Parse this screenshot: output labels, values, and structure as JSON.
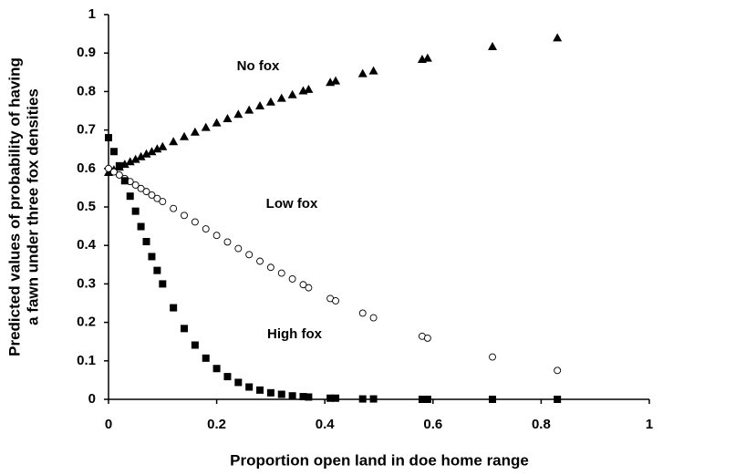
{
  "chart_data": {
    "type": "scatter",
    "x_label": "Proportion open land in doe home range",
    "y_label": [
      "Predicted values of probability of having",
      "a fawn under three fox densities"
    ],
    "annotations": [
      "No fox",
      "Low fox",
      "High fox"
    ],
    "x": [
      0,
      0.01,
      0.02,
      0.03,
      0.04,
      0.05,
      0.06,
      0.07,
      0.08,
      0.09,
      0.1,
      0.12,
      0.14,
      0.16,
      0.18,
      0.2,
      0.22,
      0.24,
      0.26,
      0.28,
      0.3,
      0.32,
      0.34,
      0.36,
      0.37,
      0.41,
      0.42,
      0.47,
      0.49,
      0.58,
      0.59,
      0.71,
      0.83
    ],
    "series": [
      {
        "name": "No fox",
        "marker": "triangle",
        "color": "#000000",
        "values": [
          0.59,
          0.597,
          0.604,
          0.611,
          0.618,
          0.624,
          0.631,
          0.638,
          0.644,
          0.651,
          0.657,
          0.67,
          0.683,
          0.695,
          0.707,
          0.719,
          0.73,
          0.741,
          0.752,
          0.763,
          0.773,
          0.783,
          0.792,
          0.802,
          0.806,
          0.824,
          0.828,
          0.847,
          0.854,
          0.884,
          0.887,
          0.917,
          0.94
        ]
      },
      {
        "name": "Low fox",
        "marker": "circle",
        "color": "#000000",
        "values": [
          0.6,
          0.591,
          0.583,
          0.574,
          0.566,
          0.557,
          0.548,
          0.54,
          0.531,
          0.522,
          0.514,
          0.496,
          0.478,
          0.461,
          0.443,
          0.426,
          0.409,
          0.392,
          0.376,
          0.359,
          0.343,
          0.328,
          0.313,
          0.298,
          0.29,
          0.262,
          0.256,
          0.224,
          0.212,
          0.164,
          0.159,
          0.11,
          0.075
        ]
      },
      {
        "name": "High fox",
        "marker": "square",
        "color": "#000000",
        "values": [
          0.68,
          0.644,
          0.607,
          0.568,
          0.528,
          0.489,
          0.449,
          0.41,
          0.371,
          0.335,
          0.3,
          0.238,
          0.184,
          0.141,
          0.107,
          0.08,
          0.059,
          0.044,
          0.032,
          0.024,
          0.017,
          0.013,
          0.009,
          0.007,
          0.006,
          0.003,
          0.003,
          0.001,
          0.001,
          0,
          0,
          0,
          0
        ]
      }
    ],
    "xlim": [
      0,
      1
    ],
    "xticks": [
      0,
      0.2,
      0.4,
      0.6,
      0.8,
      1
    ],
    "ylim": [
      0,
      1
    ],
    "yticks": [
      0,
      0.1,
      0.2,
      0.3,
      0.4,
      0.5,
      0.6,
      0.7,
      0.8,
      0.9,
      1
    ],
    "grid": false
  }
}
